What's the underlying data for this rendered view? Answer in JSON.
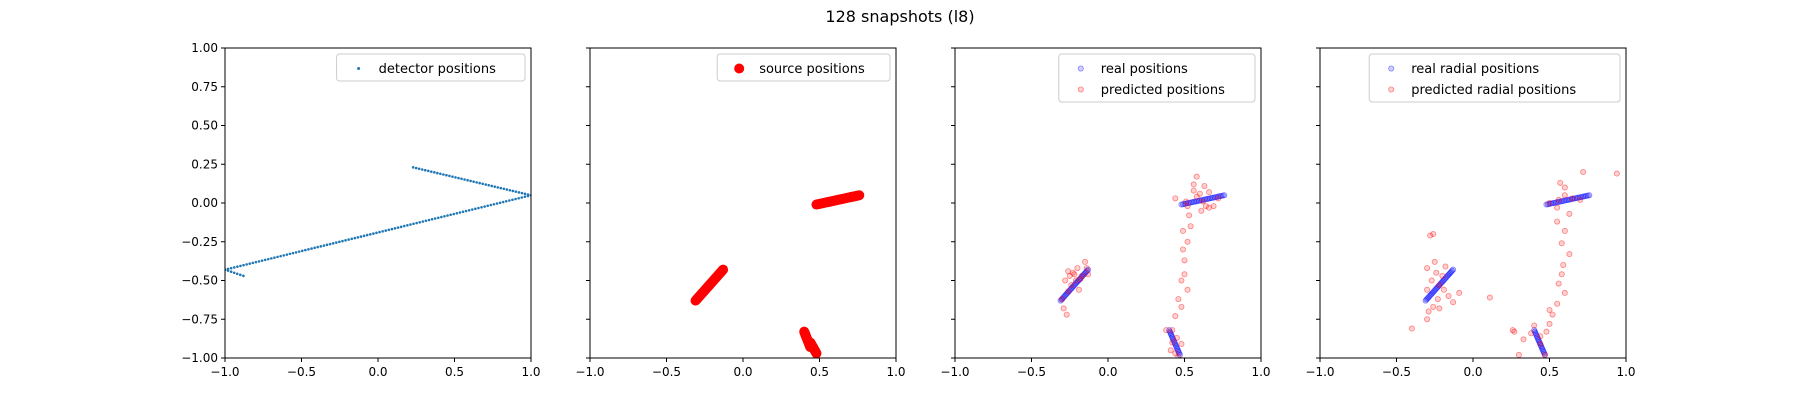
{
  "figure": {
    "title": "128 snapshots (l8)"
  },
  "chart_data": [
    {
      "type": "scatter",
      "title": "",
      "xlim": [
        -1.0,
        1.0
      ],
      "ylim": [
        -1.0,
        1.0
      ],
      "xticks": [
        "−1.0",
        "−0.5",
        "0.0",
        "0.5",
        "1.0"
      ],
      "yticks": [
        "−1.00",
        "−0.75",
        "−0.50",
        "−0.25",
        "0.00",
        "0.25",
        "0.50",
        "0.75",
        "1.00"
      ],
      "show_yticklabels": true,
      "legend_position": "upper right",
      "series": [
        {
          "name": "detector positions",
          "color": "#1f77b4",
          "marker": "point",
          "segments": [
            {
              "from": [
                -1.0,
                -0.43
              ],
              "to": [
                1.0,
                0.05
              ],
              "n": 100
            },
            {
              "from": [
                0.23,
                0.23
              ],
              "to": [
                1.0,
                0.05
              ],
              "n": 40
            },
            {
              "from": [
                -1.0,
                -0.43
              ],
              "to": [
                -0.88,
                -0.47
              ],
              "n": 7
            }
          ]
        }
      ]
    },
    {
      "type": "scatter",
      "title": "",
      "xlim": [
        -1.0,
        1.0
      ],
      "ylim": [
        -1.0,
        1.0
      ],
      "xticks": [
        "−1.0",
        "−0.5",
        "0.0",
        "0.5",
        "1.0"
      ],
      "show_yticklabels": false,
      "legend_position": "upper right",
      "series": [
        {
          "name": "source positions",
          "color": "#ff0000",
          "marker": "large-dot",
          "segments": [
            {
              "from": [
                0.48,
                -0.01
              ],
              "to": [
                0.76,
                0.05
              ],
              "n": 40
            },
            {
              "from": [
                -0.31,
                -0.63
              ],
              "to": [
                -0.13,
                -0.43
              ],
              "n": 40
            },
            {
              "from": [
                0.4,
                -0.83
              ],
              "to": [
                0.44,
                -0.93
              ],
              "n": 20
            },
            {
              "from": [
                0.44,
                -0.9
              ],
              "to": [
                0.48,
                -0.97
              ],
              "n": 20
            }
          ]
        }
      ]
    },
    {
      "type": "scatter",
      "title": "",
      "xlim": [
        -1.0,
        1.0
      ],
      "ylim": [
        -1.0,
        1.0
      ],
      "xticks": [
        "−1.0",
        "−0.5",
        "0.0",
        "0.5",
        "1.0"
      ],
      "show_yticklabels": false,
      "legend_position": "upper right",
      "series": [
        {
          "name": "real positions",
          "color": "#0000ff",
          "marker": "faint-circle",
          "segments": [
            {
              "from": [
                0.48,
                -0.01
              ],
              "to": [
                0.76,
                0.05
              ],
              "n": 28
            },
            {
              "from": [
                -0.31,
                -0.63
              ],
              "to": [
                -0.13,
                -0.43
              ],
              "n": 28
            },
            {
              "from": [
                0.4,
                -0.82
              ],
              "to": [
                0.47,
                -0.98
              ],
              "n": 18
            }
          ]
        },
        {
          "name": "predicted positions",
          "color": "#ff0000",
          "marker": "faint-circle",
          "points": [
            [
              0.58,
              0.04
            ],
            [
              0.62,
              0.01
            ],
            [
              0.64,
              -0.02
            ],
            [
              0.66,
              -0.03
            ],
            [
              0.69,
              -0.02
            ],
            [
              0.72,
              0.03
            ],
            [
              0.56,
              0.08
            ],
            [
              0.6,
              0.06
            ],
            [
              0.56,
              0.12
            ],
            [
              0.63,
              0.11
            ],
            [
              0.58,
              0.17
            ],
            [
              0.44,
              0.03
            ],
            [
              0.51,
              0.01
            ],
            [
              0.61,
              -0.05
            ],
            [
              0.52,
              -0.02
            ],
            [
              0.66,
              0.07
            ],
            [
              0.53,
              -0.08
            ],
            [
              0.54,
              -0.15
            ],
            [
              0.49,
              -0.18
            ],
            [
              0.52,
              -0.25
            ],
            [
              0.49,
              -0.3
            ],
            [
              0.5,
              -0.37
            ],
            [
              0.5,
              -0.46
            ],
            [
              0.48,
              -0.5
            ],
            [
              0.52,
              -0.56
            ],
            [
              0.46,
              -0.62
            ],
            [
              0.48,
              -0.67
            ],
            [
              0.44,
              -0.73
            ],
            [
              0.42,
              -0.82
            ],
            [
              0.38,
              -0.82
            ],
            [
              0.45,
              -0.87
            ],
            [
              0.42,
              -0.9
            ],
            [
              0.48,
              -0.91
            ],
            [
              0.41,
              -0.95
            ],
            [
              0.44,
              -0.97
            ],
            [
              0.46,
              -0.99
            ],
            [
              -0.28,
              -0.5
            ],
            [
              -0.25,
              -0.47
            ],
            [
              -0.22,
              -0.46
            ],
            [
              -0.2,
              -0.42
            ],
            [
              -0.15,
              -0.38
            ],
            [
              -0.14,
              -0.42
            ],
            [
              -0.26,
              -0.57
            ],
            [
              -0.3,
              -0.62
            ],
            [
              -0.24,
              -0.53
            ],
            [
              -0.21,
              -0.5
            ],
            [
              -0.17,
              -0.47
            ],
            [
              -0.26,
              -0.44
            ],
            [
              -0.29,
              -0.68
            ],
            [
              -0.27,
              -0.72
            ],
            [
              -0.13,
              -0.46
            ],
            [
              -0.19,
              -0.56
            ],
            [
              -0.23,
              -0.45
            ],
            [
              -0.18,
              -0.49
            ]
          ]
        }
      ]
    },
    {
      "type": "scatter",
      "title": "",
      "xlim": [
        -1.0,
        1.0
      ],
      "ylim": [
        -1.0,
        1.0
      ],
      "xticks": [
        "−1.0",
        "−0.5",
        "0.0",
        "0.5",
        "1.0"
      ],
      "show_yticklabels": false,
      "legend_position": "upper right",
      "series": [
        {
          "name": "real radial positions",
          "color": "#0000ff",
          "marker": "faint-circle",
          "segments": [
            {
              "from": [
                0.48,
                -0.01
              ],
              "to": [
                0.76,
                0.05
              ],
              "n": 28
            },
            {
              "from": [
                -0.31,
                -0.63
              ],
              "to": [
                -0.13,
                -0.43
              ],
              "n": 28
            },
            {
              "from": [
                0.4,
                -0.82
              ],
              "to": [
                0.47,
                -0.98
              ],
              "n": 18
            }
          ]
        },
        {
          "name": "predicted radial positions",
          "color": "#ff0000",
          "marker": "faint-circle",
          "points": [
            [
              0.5,
              0.0
            ],
            [
              0.56,
              0.02
            ],
            [
              0.6,
              0.05
            ],
            [
              0.65,
              0.03
            ],
            [
              0.7,
              0.02
            ],
            [
              0.55,
              -0.03
            ],
            [
              0.6,
              0.1
            ],
            [
              0.57,
              0.13
            ],
            [
              0.72,
              0.2
            ],
            [
              0.94,
              0.19
            ],
            [
              0.63,
              -0.07
            ],
            [
              0.55,
              -0.12
            ],
            [
              0.6,
              -0.18
            ],
            [
              0.58,
              -0.26
            ],
            [
              0.63,
              -0.33
            ],
            [
              0.59,
              -0.4
            ],
            [
              0.58,
              -0.46
            ],
            [
              0.56,
              -0.52
            ],
            [
              0.6,
              -0.58
            ],
            [
              0.55,
              -0.65
            ],
            [
              0.52,
              -0.72
            ],
            [
              0.5,
              -0.78
            ],
            [
              0.48,
              -0.83
            ],
            [
              0.44,
              -0.86
            ],
            [
              0.4,
              -0.79
            ],
            [
              0.38,
              -0.84
            ],
            [
              0.47,
              -0.98
            ],
            [
              0.3,
              -0.98
            ],
            [
              0.27,
              -0.83
            ],
            [
              0.33,
              -0.88
            ],
            [
              0.44,
              -0.91
            ],
            [
              0.5,
              -0.69
            ],
            [
              -0.26,
              -0.2
            ],
            [
              -0.28,
              -0.21
            ],
            [
              -0.25,
              -0.38
            ],
            [
              -0.3,
              -0.42
            ],
            [
              -0.24,
              -0.45
            ],
            [
              -0.27,
              -0.5
            ],
            [
              -0.22,
              -0.53
            ],
            [
              -0.2,
              -0.47
            ],
            [
              -0.19,
              -0.56
            ],
            [
              -0.23,
              -0.62
            ],
            [
              -0.26,
              -0.67
            ],
            [
              -0.29,
              -0.7
            ],
            [
              -0.3,
              -0.75
            ],
            [
              -0.4,
              -0.81
            ],
            [
              -0.3,
              -0.56
            ],
            [
              -0.22,
              -0.68
            ],
            [
              -0.09,
              -0.58
            ],
            [
              -0.13,
              -0.64
            ],
            [
              0.11,
              -0.61
            ],
            [
              -0.18,
              -0.41
            ],
            [
              0.26,
              -0.82
            ],
            [
              -0.16,
              -0.6
            ]
          ]
        }
      ]
    }
  ]
}
